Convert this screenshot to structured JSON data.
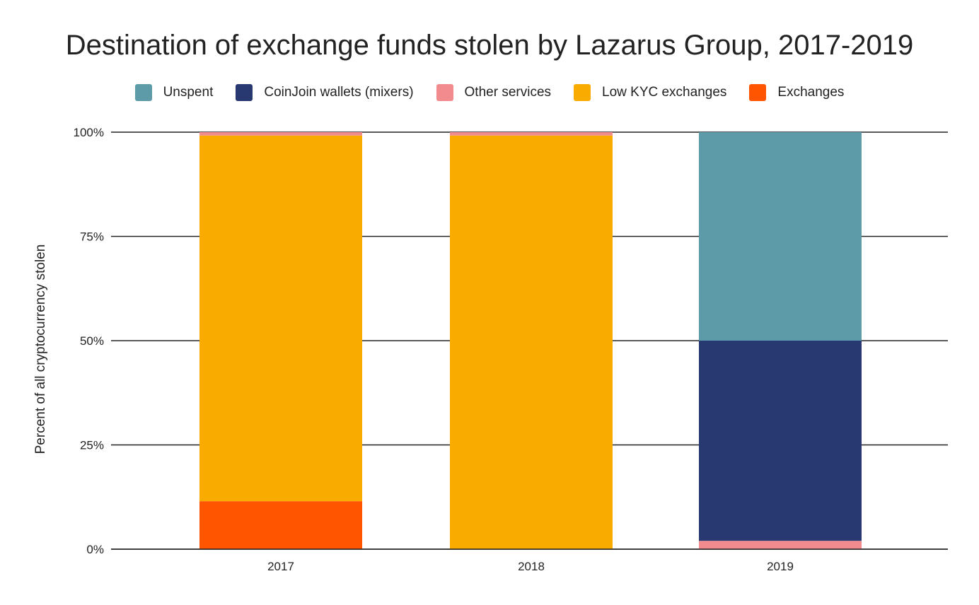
{
  "chart_data": {
    "type": "bar",
    "stacked": true,
    "title": "Destination of exchange funds stolen by Lazarus Group, 2017-2019",
    "xlabel": "",
    "ylabel": "Percent of all cryptocurrency stolen",
    "categories": [
      "2017",
      "2018",
      "2019"
    ],
    "ylim": [
      0,
      100
    ],
    "yticks": [
      "0%",
      "25%",
      "50%",
      "75%",
      "100%"
    ],
    "ytick_values": [
      0,
      25,
      50,
      75,
      100
    ],
    "grid": true,
    "legend_position": "top",
    "series": [
      {
        "name": "Exchanges",
        "color": "#FF5500",
        "values": [
          11.5,
          0,
          0
        ]
      },
      {
        "name": "Low KYC exchanges",
        "color": "#F9AB00",
        "values": [
          87.7,
          99.2,
          0
        ]
      },
      {
        "name": "Other services",
        "color": "#F28B8E",
        "values": [
          0.8,
          0.8,
          2
        ]
      },
      {
        "name": "CoinJoin wallets (mixers)",
        "color": "#283870",
        "values": [
          0,
          0,
          48
        ]
      },
      {
        "name": "Unspent",
        "color": "#5E9BA8",
        "values": [
          0,
          0,
          50
        ]
      }
    ],
    "legend_order": [
      "Unspent",
      "CoinJoin wallets (mixers)",
      "Other services",
      "Low KYC exchanges",
      "Exchanges"
    ]
  }
}
